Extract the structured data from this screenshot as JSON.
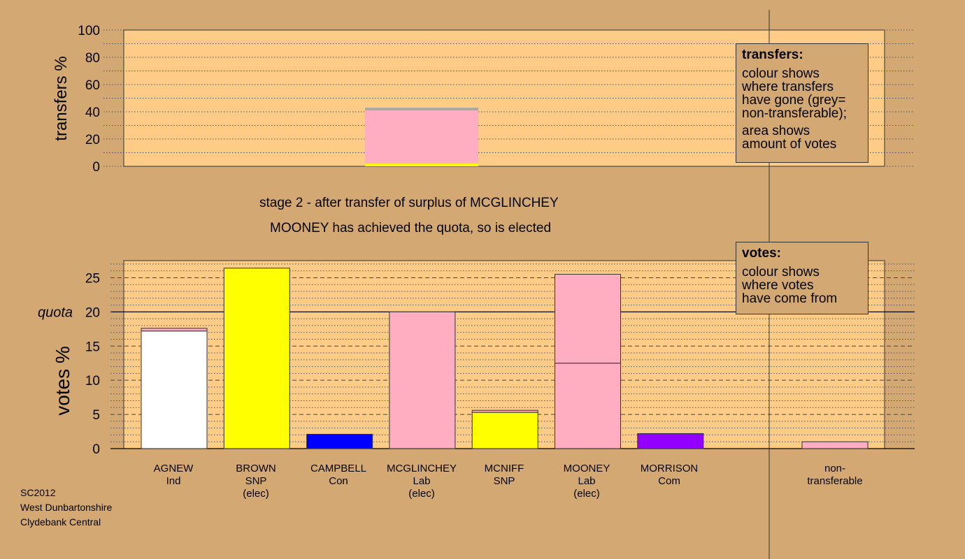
{
  "chart_data": [
    {
      "type": "bar",
      "ylabel": "transfers %",
      "ylim": [
        0,
        100
      ],
      "yticks": [
        0,
        20,
        40,
        60,
        80,
        100
      ],
      "grid": true,
      "transfer_bar": {
        "position_after": "CAMPBELL",
        "segments": [
          {
            "to": "BROWN",
            "color": "#ffff00",
            "value": 2
          },
          {
            "to": "MOONEY",
            "color": "#ffaec1",
            "value": 39
          },
          {
            "to": "non-transferable",
            "color": "#a9a9a9",
            "value": 2
          }
        ]
      },
      "legend": {
        "title": "transfers:",
        "lines": [
          "colour shows",
          "where transfers",
          "have gone (grey=",
          "non-transferable);"
        ],
        "lines2": [
          "area shows",
          "amount of votes"
        ]
      }
    },
    {
      "type": "bar",
      "stacked": true,
      "ylabel": "votes %",
      "ylim": [
        0,
        27.5
      ],
      "yticks": [
        0,
        5,
        10,
        15,
        20,
        25
      ],
      "quota": 20,
      "quota_label": "quota",
      "grid": true,
      "categories": [
        {
          "name": "AGNEW",
          "party": "Ind",
          "status": "",
          "segments": [
            {
              "value": 17.2,
              "color": "#ffffff"
            },
            {
              "value": 0.4,
              "color": "#ffaec1"
            }
          ]
        },
        {
          "name": "BROWN",
          "party": "SNP",
          "status": "(elec)",
          "segments": [
            {
              "value": 26.4,
              "color": "#ffff00"
            }
          ]
        },
        {
          "name": "CAMPBELL",
          "party": "Con",
          "status": "",
          "segments": [
            {
              "value": 2.1,
              "color": "#0000ff"
            }
          ]
        },
        {
          "name": "MCGLINCHEY",
          "party": "Lab",
          "status": "(elec)",
          "segments": [
            {
              "value": 20.0,
              "color": "#ffaec1"
            }
          ]
        },
        {
          "name": "MCNIFF",
          "party": "SNP",
          "status": "",
          "segments": [
            {
              "value": 5.3,
              "color": "#ffff00"
            },
            {
              "value": 0.3,
              "color": "#ffaec1"
            }
          ]
        },
        {
          "name": "MOONEY",
          "party": "Lab",
          "status": "(elec)",
          "segments": [
            {
              "value": 12.5,
              "color": "#ffaec1"
            },
            {
              "value": 13.0,
              "color": "#ffaec1"
            }
          ]
        },
        {
          "name": "MORRISON",
          "party": "Com",
          "status": "",
          "segments": [
            {
              "value": 2.2,
              "color": "#9400ff"
            }
          ]
        }
      ],
      "nontransferable": {
        "name": "non-",
        "name2": "transferable",
        "value": 1.0,
        "color": "#ffaec1"
      },
      "legend": {
        "title": "votes:",
        "lines": [
          "colour shows",
          "where votes",
          "have come from"
        ]
      }
    }
  ],
  "stage_title": "stage 2 - after transfer of surplus of MCGLINCHEY",
  "stage_subtitle": "MOONEY has achieved the quota, so is elected",
  "footer": {
    "line1": "SC2012",
    "line2": "West Dunbartonshire",
    "line3": "Clydebank Central"
  },
  "colors": {
    "background": "#d4a873",
    "plot_bg": "#ffcc88",
    "axis": "#000000"
  }
}
